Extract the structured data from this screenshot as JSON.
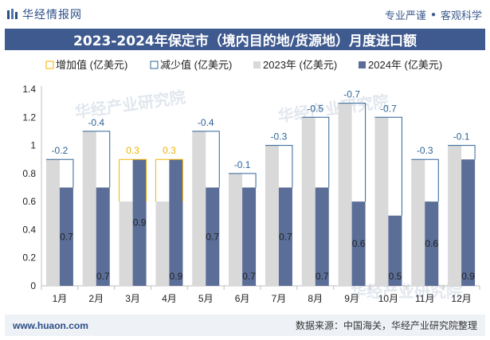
{
  "header": {
    "brand": "华经情报网",
    "tag_left": "专业严谨",
    "tag_right": "客观科学"
  },
  "title": "2023-2024年保定市（境内目的地/货源地）月度进口额",
  "footer": {
    "site": "www.huaon.com",
    "source": "数据来源：中国海关，华经产业研究院整理"
  },
  "watermark": "华经产业研究院",
  "colors": {
    "title_bg": "#3f5a8f",
    "bar_2023": "#d9d9d9",
    "bar_2024": "#5b6e98",
    "increase": "#f0b400",
    "decrease": "#2f6496",
    "brand": "#2b4f86"
  },
  "chart_data": {
    "type": "bar",
    "categories": [
      "1月",
      "2月",
      "3月",
      "4月",
      "5月",
      "6月",
      "7月",
      "8月",
      "9月",
      "10月",
      "11月",
      "12月"
    ],
    "series": [
      {
        "name": "2023年 (亿美元)",
        "values": [
          0.9,
          1.1,
          0.6,
          0.6,
          1.1,
          0.8,
          1.0,
          1.2,
          1.3,
          1.2,
          0.9,
          1.0
        ]
      },
      {
        "name": "2024年 (亿美元)",
        "values": [
          0.7,
          0.7,
          0.9,
          0.9,
          0.7,
          0.7,
          0.7,
          0.7,
          0.6,
          0.5,
          0.6,
          0.9
        ]
      }
    ],
    "change_series": [
      {
        "name": "增加值 (亿美元)",
        "kind": "increase"
      },
      {
        "name": "减少值 (亿美元)",
        "kind": "decrease"
      }
    ],
    "changes": [
      -0.2,
      -0.4,
      0.3,
      0.3,
      -0.4,
      -0.1,
      -0.3,
      -0.5,
      -0.7,
      -0.7,
      -0.3,
      -0.1
    ],
    "change_labels": [
      "-0.2",
      "-0.4",
      "0.3",
      "0.3",
      "-0.4",
      "-0.1",
      "-0.3",
      "-0.5",
      "-0.7",
      "-0.7",
      "-0.3",
      "-0.1"
    ],
    "value_labels_2024": [
      "0.7",
      "0.7",
      "0.9",
      "0.9",
      "0.7",
      "0.7",
      "0.7",
      "0.7",
      "0.6",
      "0.5",
      "0.6",
      "0.9"
    ],
    "y_ticks": [
      "0",
      "0.2",
      "0.4",
      "0.6",
      "0.8",
      "1",
      "1.2",
      "1.4"
    ],
    "ylim": [
      0,
      1.4
    ],
    "legend_position": "top"
  }
}
